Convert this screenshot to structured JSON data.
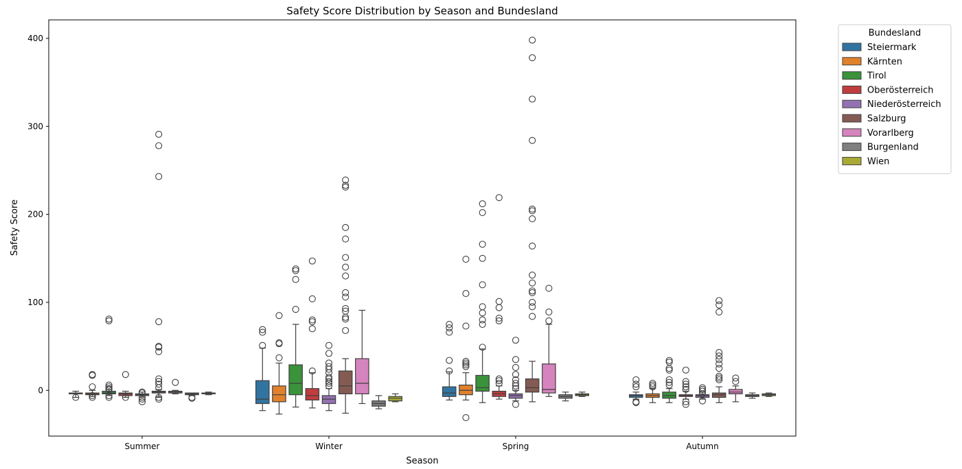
{
  "chart_data": {
    "type": "box",
    "title": "Safety Score Distribution by Season and Bundesland",
    "xlabel": "Season",
    "ylabel": "Safety Score",
    "ylim": [
      -52,
      421
    ],
    "yticks": [
      0,
      100,
      200,
      300,
      400
    ],
    "categories": [
      "Summer",
      "Winter",
      "Spring",
      "Autumn"
    ],
    "legend": {
      "title": "Bundesland",
      "placement": "outside-top-right"
    },
    "series": [
      {
        "name": "Steiermark",
        "color": "#3274a1",
        "boxes": [
          {
            "min": -8,
            "q1": -4,
            "median": -4,
            "q3": -3,
            "max": -1,
            "outliers": [
              -8
            ]
          },
          {
            "min": -23,
            "q1": -15,
            "median": -10,
            "q3": 11,
            "max": 48,
            "outliers": [
              51,
              66,
              69
            ]
          },
          {
            "min": -11,
            "q1": -7,
            "median": -3,
            "q3": 4,
            "max": 21,
            "outliers": [
              22,
              34,
              66,
              71,
              75
            ]
          },
          {
            "min": -10,
            "q1": -8,
            "median": -6,
            "q3": -5,
            "max": -2,
            "outliers": [
              -14,
              -13,
              4,
              7,
              12
            ]
          }
        ]
      },
      {
        "name": "Kärnten",
        "color": "#e1812c",
        "boxes": [
          {
            "min": -7,
            "q1": -5,
            "median": -4,
            "q3": -3,
            "max": 0,
            "outliers": [
              -8,
              -6,
              4,
              17,
              18
            ]
          },
          {
            "min": -27,
            "q1": -13,
            "median": -5,
            "q3": 5,
            "max": 31,
            "outliers": [
              37,
              53,
              54,
              85
            ]
          },
          {
            "min": -11,
            "q1": -5,
            "median": 0,
            "q3": 6,
            "max": 20,
            "outliers": [
              -31,
              27,
              29,
              31,
              33,
              73,
              110,
              149
            ]
          },
          {
            "min": -14,
            "q1": -8,
            "median": -6,
            "q3": -4,
            "max": 2,
            "outliers": [
              4,
              6,
              8
            ]
          }
        ]
      },
      {
        "name": "Tirol",
        "color": "#3a923a",
        "boxes": [
          {
            "min": -6,
            "q1": -4,
            "median": -3,
            "q3": -1,
            "max": 1,
            "outliers": [
              -8,
              -6,
              1,
              2,
              4,
              6,
              79,
              81
            ]
          },
          {
            "min": -19,
            "q1": -5,
            "median": 8,
            "q3": 29,
            "max": 75,
            "outliers": [
              92,
              126,
              136,
              138
            ]
          },
          {
            "min": -14,
            "q1": -1,
            "median": 3,
            "q3": 17,
            "max": 47,
            "outliers": [
              49,
              75,
              80,
              88,
              95,
              120,
              150,
              166,
              202,
              212
            ]
          },
          {
            "min": -14,
            "q1": -9,
            "median": -6,
            "q3": -2,
            "max": 2,
            "outliers": [
              6,
              9,
              12,
              23,
              25,
              32,
              34
            ]
          }
        ]
      },
      {
        "name": "Oberösterreich",
        "color": "#c03d3e",
        "boxes": [
          {
            "min": -8,
            "q1": -6,
            "median": -4,
            "q3": -3,
            "max": -1,
            "outliers": [
              -8,
              18
            ]
          },
          {
            "min": -20,
            "q1": -11,
            "median": -6,
            "q3": 2,
            "max": 20,
            "outliers": [
              22,
              70,
              78,
              80,
              104,
              147
            ]
          },
          {
            "min": -10,
            "q1": -7,
            "median": -4,
            "q3": -1,
            "max": 5,
            "outliers": [
              8,
              11,
              13,
              79,
              82,
              94,
              101,
              219
            ]
          },
          {
            "min": -10,
            "q1": -7,
            "median": -6,
            "q3": -5,
            "max": -1,
            "outliers": [
              -16,
              -13,
              1,
              4,
              7,
              10,
              23
            ]
          }
        ]
      },
      {
        "name": "Niederösterreich",
        "color": "#9372b2",
        "boxes": [
          {
            "min": -8,
            "q1": -6,
            "median": -5,
            "q3": -4,
            "max": -2,
            "outliers": [
              -13,
              -10,
              -8,
              -3,
              -2
            ]
          },
          {
            "min": -23,
            "q1": -15,
            "median": -10,
            "q3": -6,
            "max": 2,
            "outliers": [
              5,
              8,
              10,
              13,
              15,
              20,
              24,
              27,
              31,
              42,
              51
            ]
          },
          {
            "min": -12,
            "q1": -9,
            "median": -6,
            "q3": -4,
            "max": 0,
            "outliers": [
              -16,
              2,
              5,
              8,
              12,
              18,
              26,
              35,
              57
            ]
          },
          {
            "min": -10,
            "q1": -8,
            "median": -6,
            "q3": -5,
            "max": -2,
            "outliers": [
              -12,
              -4,
              -1,
              1,
              3
            ]
          }
        ]
      },
      {
        "name": "Salzburg",
        "color": "#845b53",
        "boxes": [
          {
            "min": -8,
            "q1": -3,
            "median": -2,
            "q3": -1,
            "max": 1,
            "outliers": [
              -10,
              -8,
              3,
              7,
              10,
              13,
              44,
              49,
              50,
              78,
              243,
              278,
              291
            ]
          },
          {
            "min": -26,
            "q1": -4,
            "median": 5,
            "q3": 22,
            "max": 36,
            "outliers": [
              68,
              81,
              83,
              90,
              93,
              106,
              111,
              130,
              140,
              151,
              172,
              185,
              231,
              233,
              239
            ]
          },
          {
            "min": -13,
            "q1": -2,
            "median": 3,
            "q3": 13,
            "max": 33,
            "outliers": [
              84,
              95,
              100,
              111,
              113,
              122,
              131,
              164,
              195,
              204,
              206,
              284,
              331,
              378,
              398
            ]
          },
          {
            "min": -14,
            "q1": -8,
            "median": -5,
            "q3": -3,
            "max": 4,
            "outliers": [
              12,
              14,
              16,
              25,
              30,
              35,
              39,
              43,
              89,
              97,
              102
            ]
          }
        ]
      },
      {
        "name": "Vorarlberg",
        "color": "#d684bd",
        "boxes": [
          {
            "min": -4,
            "q1": -3,
            "median": -2,
            "q3": -1,
            "max": 0,
            "outliers": [
              9
            ]
          },
          {
            "min": -15,
            "q1": -4,
            "median": 8,
            "q3": 36,
            "max": 91,
            "outliers": []
          },
          {
            "min": -7,
            "q1": -3,
            "median": 1,
            "q3": 30,
            "max": 75,
            "outliers": [
              79,
              89,
              116
            ]
          },
          {
            "min": -13,
            "q1": -4,
            "median": -2,
            "q3": 1,
            "max": 5,
            "outliers": [
              10,
              14
            ]
          }
        ]
      },
      {
        "name": "Burgenland",
        "color": "#7f7f7f",
        "boxes": [
          {
            "min": -6,
            "q1": -5,
            "median": -4,
            "q3": -3,
            "max": -3,
            "outliers": [
              -9,
              -8
            ]
          },
          {
            "min": -21,
            "q1": -18,
            "median": -15,
            "q3": -12,
            "max": -6,
            "outliers": []
          },
          {
            "min": -12,
            "q1": -9,
            "median": -7,
            "q3": -5,
            "max": -2,
            "outliers": []
          },
          {
            "min": -9,
            "q1": -7,
            "median": -6,
            "q3": -5,
            "max": -3,
            "outliers": []
          }
        ]
      },
      {
        "name": "Wien",
        "color": "#a9aa35",
        "boxes": [
          {
            "min": -5,
            "q1": -4,
            "median": -3,
            "q3": -3,
            "max": -2,
            "outliers": []
          },
          {
            "min": -13,
            "q1": -12,
            "median": -9,
            "q3": -7,
            "max": -4,
            "outliers": []
          },
          {
            "min": -7,
            "q1": -6,
            "median": -5,
            "q3": -4,
            "max": -2,
            "outliers": []
          },
          {
            "min": -7,
            "q1": -6,
            "median": -5,
            "q3": -4,
            "max": -3,
            "outliers": []
          }
        ]
      }
    ]
  }
}
